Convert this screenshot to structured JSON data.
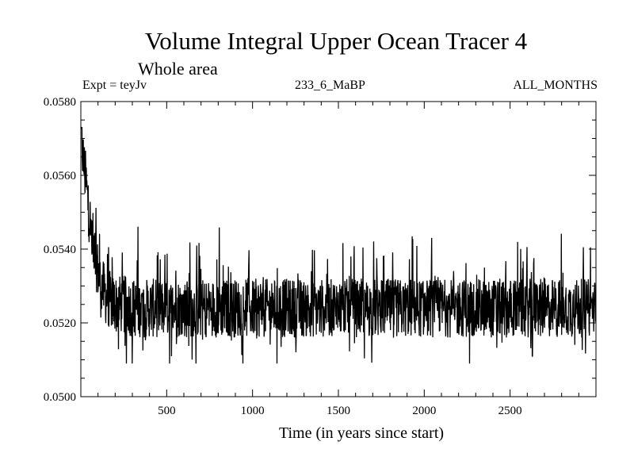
{
  "chart_data": {
    "type": "line",
    "title": "Volume Integral Upper Ocean Tracer 4",
    "subtitle": "Whole area",
    "experiment": "Expt = teyJv",
    "period": "233_6_MaBP",
    "months": "ALL_MONTHS",
    "xlabel": "Time (in years since start)",
    "ylabel": "",
    "xlim": [
      0,
      3000
    ],
    "ylim": [
      0.05,
      0.058
    ],
    "xticks": [
      500,
      1000,
      1500,
      2000,
      2500
    ],
    "xtick_labels": [
      "500",
      "1000",
      "1500",
      "2000",
      "2500"
    ],
    "yticks": [
      0.05,
      0.052,
      0.054,
      0.056,
      0.058
    ],
    "ytick_labels": [
      "0.0500",
      "0.0520",
      "0.0540",
      "0.0560",
      "0.0580"
    ],
    "series": [
      {
        "name": "Tracer 4 volume integral",
        "x": [
          0,
          10,
          20,
          30,
          40,
          50,
          60,
          80,
          100,
          120,
          150,
          200,
          250,
          300,
          400,
          500,
          600,
          700,
          800,
          900,
          1000,
          1100,
          1200,
          1300,
          1400,
          1500,
          1600,
          1700,
          1800,
          1900,
          2000,
          2100,
          2200,
          2300,
          2400,
          2500,
          2600,
          2700,
          2800,
          2900,
          3000
        ],
        "values": [
          0.0572,
          0.0566,
          0.0562,
          0.0558,
          0.0553,
          0.0549,
          0.0545,
          0.0539,
          0.0534,
          0.053,
          0.0527,
          0.0525,
          0.0525,
          0.0524,
          0.0524,
          0.0524,
          0.0524,
          0.0524,
          0.0524,
          0.0524,
          0.0524,
          0.0524,
          0.0524,
          0.0524,
          0.0524,
          0.0524,
          0.0524,
          0.0524,
          0.0524,
          0.0524,
          0.0524,
          0.0524,
          0.0524,
          0.0524,
          0.0524,
          0.0524,
          0.0524,
          0.0524,
          0.0524,
          0.0524,
          0.0524
        ],
        "variability": "high-frequency noise with peaks near 0.0553 and troughs near 0.0510"
      }
    ]
  }
}
